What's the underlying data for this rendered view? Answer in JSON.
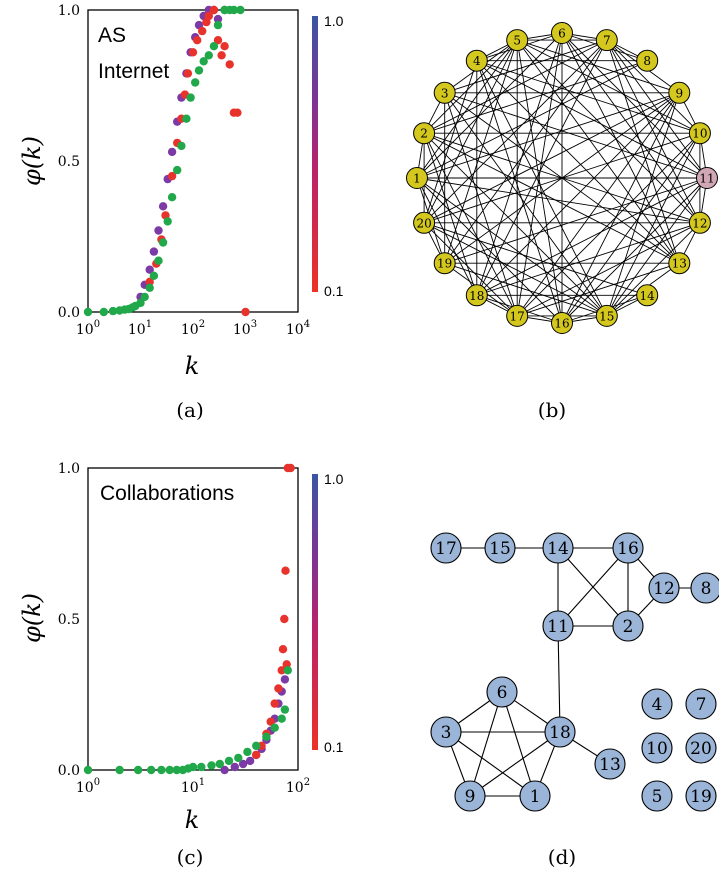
{
  "panels": {
    "a": {
      "label": "(a)",
      "annotation_line1": "AS",
      "annotation_line2": "Internet",
      "ylabel": "φ(k)",
      "xlabel": "k",
      "yticks": [
        "0.0",
        "0.5",
        "1.0"
      ],
      "xtick_base": "10",
      "xtick_exps": [
        "0",
        "1",
        "2",
        "3",
        "4"
      ],
      "colorbar_top": "1.0",
      "colorbar_bottom": "0.1"
    },
    "b": {
      "label": "(b)"
    },
    "c": {
      "label": "(c)",
      "annotation": "Collaborations",
      "ylabel": "φ(k)",
      "xlabel": "k",
      "yticks": [
        "0.0",
        "0.5",
        "1.0"
      ],
      "xtick_base": "10",
      "xtick_exps": [
        "0",
        "1",
        "2"
      ],
      "colorbar_top": "1.0",
      "colorbar_bottom": "0.1"
    },
    "d": {
      "label": "(d)"
    }
  },
  "colors": {
    "node_yellow": "#d4c81e",
    "node_pink": "#d2a7b5",
    "node_blue": "#9bb5d8",
    "series_green": "#21a84a",
    "series_red": "#e8332c",
    "series_purple": "#7b3aa6",
    "series_blue": "#3c5aa6",
    "colorbar_top": "#3a55a4",
    "colorbar_bottom": "#ed3227"
  },
  "chart_data": [
    {
      "type": "scatter",
      "panel": "a",
      "xscale": "log",
      "xlim": [
        1,
        10000
      ],
      "ylim": [
        0,
        1
      ],
      "grid": false,
      "colorbar": {
        "min": 0.1,
        "max": 1.0
      },
      "series": [
        {
          "color": "#21a84a",
          "x": [
            1,
            2,
            3,
            4,
            5,
            6,
            7,
            8,
            10,
            12,
            15,
            18,
            22,
            27,
            33,
            40,
            50,
            60,
            75,
            90,
            110,
            130,
            160,
            200,
            250,
            300,
            400,
            500,
            600,
            800
          ],
          "y": [
            0.0,
            0.0,
            0.003,
            0.005,
            0.008,
            0.01,
            0.015,
            0.02,
            0.03,
            0.05,
            0.08,
            0.12,
            0.17,
            0.23,
            0.3,
            0.38,
            0.47,
            0.55,
            0.64,
            0.71,
            0.76,
            0.8,
            0.83,
            0.85,
            0.88,
            0.95,
            1.0,
            1.0,
            1.0,
            1.0
          ]
        },
        {
          "color": "#7b3aa6",
          "x": [
            10,
            12,
            15,
            18,
            22,
            27,
            33,
            40,
            50,
            60,
            75,
            90,
            110,
            130,
            160,
            200,
            250,
            300,
            400
          ],
          "y": [
            0.05,
            0.09,
            0.14,
            0.2,
            0.27,
            0.35,
            0.44,
            0.53,
            0.63,
            0.71,
            0.79,
            0.86,
            0.91,
            0.95,
            0.98,
            1.0,
            1.0,
            0.97,
            1.0
          ]
        },
        {
          "color": "#e8332c",
          "x": [
            15,
            20,
            25,
            30,
            40,
            50,
            60,
            70,
            80,
            100,
            120,
            150,
            180,
            200,
            250,
            300,
            350,
            400,
            500,
            600,
            700,
            1000
          ],
          "y": [
            0.1,
            0.16,
            0.24,
            0.32,
            0.45,
            0.56,
            0.64,
            0.72,
            0.79,
            0.86,
            0.9,
            0.93,
            0.96,
            0.98,
            1.0,
            0.9,
            0.85,
            0.88,
            0.82,
            0.66,
            0.66,
            0.0
          ]
        }
      ]
    },
    {
      "type": "scatter",
      "panel": "c",
      "xscale": "log",
      "xlim": [
        1,
        100
      ],
      "ylim": [
        0,
        1
      ],
      "grid": false,
      "colorbar": {
        "min": 0.1,
        "max": 1.0
      },
      "series": [
        {
          "color": "#21a84a",
          "x": [
            1,
            2,
            3,
            4,
            5,
            6,
            7,
            8,
            9,
            10,
            12,
            15,
            18,
            22,
            27,
            33,
            40,
            50,
            60,
            70,
            75,
            80
          ],
          "y": [
            0.0,
            0.0,
            0.0,
            0.0,
            0.0,
            0.0,
            0.0,
            0.0,
            0.005,
            0.01,
            0.01,
            0.015,
            0.02,
            0.03,
            0.04,
            0.06,
            0.08,
            0.11,
            0.14,
            0.17,
            0.2,
            0.33
          ]
        },
        {
          "color": "#7b3aa6",
          "x": [
            20,
            25,
            30,
            35,
            40,
            45,
            50,
            55,
            60,
            65,
            70,
            75
          ],
          "y": [
            0.0,
            0.01,
            0.02,
            0.03,
            0.05,
            0.07,
            0.1,
            0.13,
            0.17,
            0.22,
            0.26,
            0.3
          ]
        },
        {
          "color": "#e8332c",
          "x": [
            40,
            45,
            50,
            55,
            60,
            65,
            70,
            72,
            74,
            76,
            78,
            80,
            85
          ],
          "y": [
            0.05,
            0.08,
            0.12,
            0.16,
            0.22,
            0.27,
            0.33,
            0.4,
            0.5,
            0.66,
            0.35,
            1.0,
            1.0
          ]
        }
      ]
    },
    {
      "type": "network",
      "panel": "b",
      "nodes": [
        "1",
        "2",
        "3",
        "4",
        "5",
        "6",
        "7",
        "8",
        "9",
        "10",
        "11",
        "12",
        "13",
        "14",
        "15",
        "16",
        "17",
        "18",
        "19",
        "20"
      ],
      "highlight": [
        "11"
      ]
    },
    {
      "type": "network",
      "panel": "d",
      "nodes": [
        "1",
        "2",
        "3",
        "4",
        "5",
        "6",
        "7",
        "8",
        "9",
        "10",
        "11",
        "12",
        "13",
        "14",
        "15",
        "16",
        "17",
        "18",
        "19",
        "20"
      ],
      "edges": [
        [
          "17",
          "15"
        ],
        [
          "15",
          "14"
        ],
        [
          "14",
          "16"
        ],
        [
          "14",
          "11"
        ],
        [
          "14",
          "2"
        ],
        [
          "16",
          "11"
        ],
        [
          "16",
          "2"
        ],
        [
          "16",
          "12"
        ],
        [
          "11",
          "2"
        ],
        [
          "12",
          "8"
        ],
        [
          "12",
          "2"
        ],
        [
          "11",
          "18"
        ],
        [
          "6",
          "3"
        ],
        [
          "6",
          "18"
        ],
        [
          "6",
          "9"
        ],
        [
          "6",
          "1"
        ],
        [
          "3",
          "18"
        ],
        [
          "3",
          "9"
        ],
        [
          "3",
          "1"
        ],
        [
          "9",
          "18"
        ],
        [
          "9",
          "1"
        ],
        [
          "1",
          "18"
        ],
        [
          "18",
          "13"
        ]
      ]
    }
  ]
}
